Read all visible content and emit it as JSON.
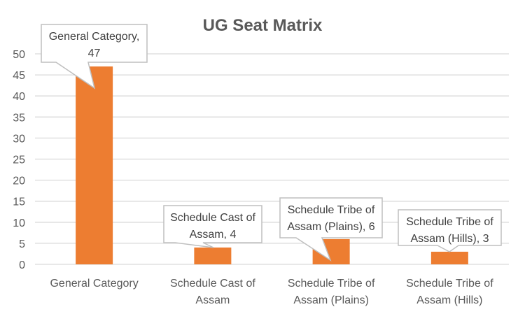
{
  "chart_data": {
    "type": "bar",
    "title": "UG Seat Matrix",
    "xlabel": "",
    "ylabel": "",
    "ylim": [
      0,
      50
    ],
    "yticks": [
      0,
      5,
      10,
      15,
      20,
      25,
      30,
      35,
      40,
      45,
      50
    ],
    "grid": true,
    "legend": "none",
    "categories": [
      "General Category",
      "Schedule Cast of Assam",
      "Schedule Tribe of Assam (Plains)",
      "Schedule Tribe of Assam (Hills)"
    ],
    "category_lines": [
      [
        "General Category"
      ],
      [
        "Schedule Cast of",
        "Assam"
      ],
      [
        "Schedule Tribe of",
        "Assam (Plains)"
      ],
      [
        "Schedule Tribe of",
        "Assam (Hills)"
      ]
    ],
    "values": [
      47,
      4,
      6,
      3
    ],
    "data_labels": [
      [
        "General Category,",
        "47"
      ],
      [
        "Schedule Cast of",
        "Assam, 4"
      ],
      [
        "Schedule Tribe of",
        "Assam (Plains), 6"
      ],
      [
        "Schedule Tribe of",
        "Assam (Hills), 3"
      ]
    ],
    "colors": {
      "bar": "#ED7D31",
      "grid": "#D9D9D9",
      "text": "#595959"
    }
  }
}
